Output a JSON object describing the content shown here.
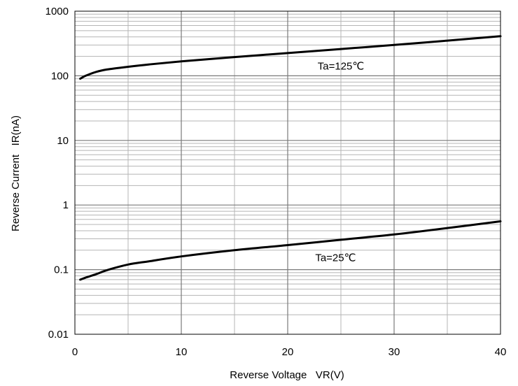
{
  "chart_data": {
    "type": "line",
    "title": "",
    "xlabel": "Reverse Voltage   VR(V)",
    "ylabel": "Reverse Current   IR(nA)",
    "xlim": [
      0,
      40
    ],
    "ylim": [
      0.01,
      1000
    ],
    "y_scale": "log",
    "grid": true,
    "legend": "none",
    "x_ticks": [
      "0",
      "10",
      "20",
      "30",
      "40"
    ],
    "y_ticks": [
      "0.01",
      "0.1",
      "1",
      "10",
      "100",
      "1000"
    ],
    "series": [
      {
        "name": "Ta=125℃",
        "color": "#000000",
        "x": [
          0.5,
          1,
          2,
          3,
          5,
          7,
          10,
          15,
          20,
          25,
          30,
          35,
          40
        ],
        "y": [
          90,
          100,
          115,
          125,
          138,
          150,
          167,
          195,
          225,
          260,
          300,
          350,
          410
        ]
      },
      {
        "name": "Ta=25℃",
        "color": "#000000",
        "x": [
          0.5,
          1,
          2,
          3,
          5,
          7,
          10,
          15,
          20,
          25,
          30,
          35,
          40
        ],
        "y": [
          0.07,
          0.075,
          0.085,
          0.098,
          0.12,
          0.135,
          0.16,
          0.2,
          0.24,
          0.29,
          0.35,
          0.44,
          0.56
        ]
      }
    ],
    "annotations": [
      {
        "text": "Ta=125℃",
        "x": 25,
        "y": 125
      },
      {
        "text": "Ta=25℃",
        "x": 24.5,
        "y": 0.135
      }
    ]
  }
}
